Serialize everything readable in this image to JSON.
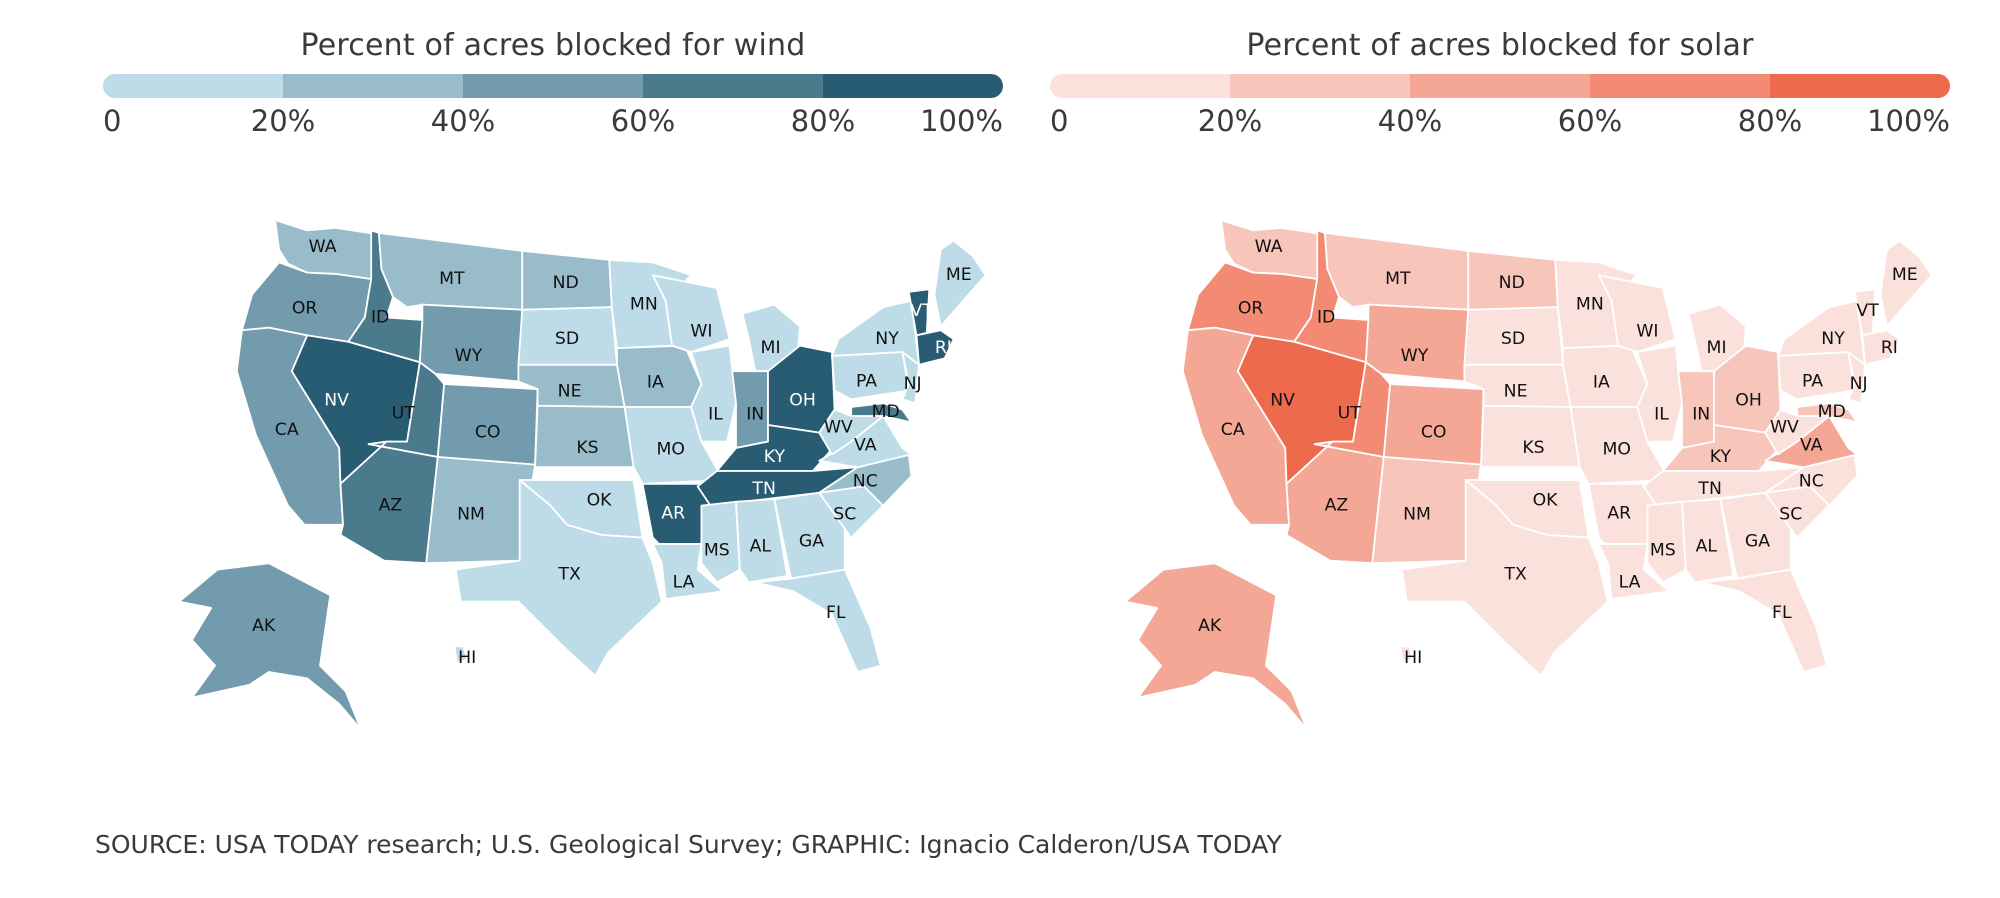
{
  "legends": {
    "wind": {
      "title": "Percent of acres blocked for wind",
      "ticks": [
        "0",
        "20%",
        "40%",
        "60%",
        "80%",
        "100%"
      ],
      "colors": [
        "#bddce8",
        "#98bcca",
        "#729bad",
        "#4b7a8c",
        "#275c72"
      ]
    },
    "solar": {
      "title": "Percent of acres blocked for solar",
      "ticks": [
        "0",
        "20%",
        "40%",
        "60%",
        "80%",
        "100%"
      ],
      "colors": [
        "#fbe1dc",
        "#f8c5bb",
        "#f5a796",
        "#f28a74",
        "#ee6a4d"
      ]
    }
  },
  "chart_data": [
    {
      "type": "choropleth",
      "title": "Percent of acres blocked for wind",
      "bins": [
        "0-20%",
        "20-40%",
        "40-60%",
        "60-80%",
        "80-100%"
      ],
      "states": {
        "WA": 1,
        "OR": 2,
        "CA": 2,
        "ID": 3,
        "NV": 4,
        "MT": 1,
        "WY": 2,
        "UT": 3,
        "AZ": 3,
        "CO": 2,
        "NM": 1,
        "ND": 1,
        "SD": 0,
        "NE": 1,
        "KS": 1,
        "OK": 0,
        "TX": 0,
        "MN": 0,
        "IA": 1,
        "MO": 0,
        "AR": 4,
        "LA": 0,
        "WI": 0,
        "IL": 0,
        "MI": 0,
        "IN": 2,
        "OH": 4,
        "KY": 4,
        "TN": 4,
        "MS": 0,
        "AL": 0,
        "GA": 0,
        "FL": 0,
        "SC": 0,
        "NC": 1,
        "VA": 0,
        "WV": 0,
        "MD": 3,
        "PA": 0,
        "NJ": 0,
        "NY": 0,
        "VT": 4,
        "ME": 0,
        "RI": 4,
        "AK": 2,
        "HI": 0
      }
    },
    {
      "type": "choropleth",
      "title": "Percent of acres blocked for solar",
      "bins": [
        "0-20%",
        "20-40%",
        "40-60%",
        "60-80%",
        "80-100%"
      ],
      "states": {
        "WA": 1,
        "OR": 3,
        "CA": 2,
        "ID": 3,
        "NV": 4,
        "MT": 1,
        "WY": 2,
        "UT": 3,
        "AZ": 2,
        "CO": 2,
        "NM": 1,
        "ND": 1,
        "SD": 0,
        "NE": 0,
        "KS": 0,
        "OK": 0,
        "TX": 0,
        "MN": 0,
        "IA": 0,
        "MO": 0,
        "AR": 0,
        "LA": 0,
        "WI": 0,
        "IL": 0,
        "MI": 0,
        "IN": 1,
        "OH": 1,
        "KY": 1,
        "TN": 0,
        "MS": 0,
        "AL": 0,
        "GA": 0,
        "FL": 0,
        "SC": 0,
        "NC": 0,
        "VA": 2,
        "WV": 0,
        "MD": 1,
        "PA": 0,
        "NJ": 0,
        "NY": 0,
        "VT": 0,
        "ME": 0,
        "RI": 0,
        "AK": 2,
        "HI": 0
      }
    }
  ],
  "footer": "SOURCE: USA TODAY research; U.S. Geological Survey; GRAPHIC: Ignacio Calderon/USA TODAY"
}
